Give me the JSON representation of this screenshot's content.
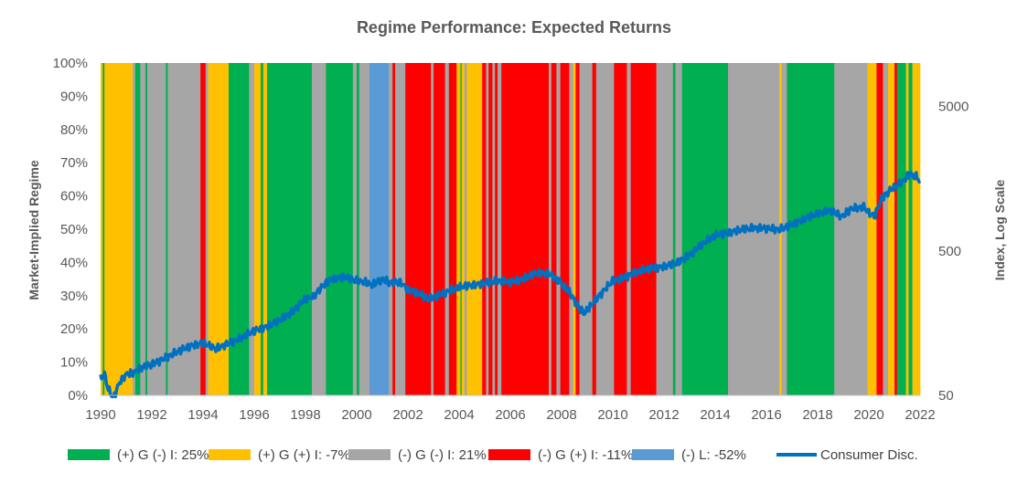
{
  "chart_data": {
    "type": "area",
    "title": "Regime Performance: Expected Returns",
    "ylabel": "Market-Implied Regime",
    "y2label": "Index, Log Scale",
    "xlim": [
      1990,
      2022
    ],
    "ylim": [
      0,
      100
    ],
    "y2lim": [
      50,
      10000
    ],
    "y2scale": "log",
    "x_ticks": [
      "1990",
      "1992",
      "1994",
      "1996",
      "1998",
      "2000",
      "2002",
      "2004",
      "2006",
      "2008",
      "2010",
      "2012",
      "2014",
      "2016",
      "2018",
      "2020",
      "2022"
    ],
    "y_ticks": [
      "0%",
      "10%",
      "20%",
      "30%",
      "40%",
      "50%",
      "60%",
      "70%",
      "80%",
      "90%",
      "100%"
    ],
    "y2_ticks": [
      {
        "label": "50",
        "value": 50
      },
      {
        "label": "500",
        "value": 500
      },
      {
        "label": "5000",
        "value": 5000
      }
    ],
    "grid": false,
    "legend_position": "bottom",
    "legend": [
      {
        "key": "gdi",
        "label": "(+) G (-) I: 25%",
        "color": "#00B050",
        "kind": "box"
      },
      {
        "key": "gii",
        "label": "(+) G (+) I: -7%",
        "color": "#FFC000",
        "kind": "box"
      },
      {
        "key": "ndi",
        "label": "(-) G (-) I: 21%",
        "color": "#A6A6A6",
        "kind": "box"
      },
      {
        "key": "nii",
        "label": "(-) G (+) I: -11%",
        "color": "#FF0000",
        "kind": "box"
      },
      {
        "key": "liq",
        "label": "(-) L: -52%",
        "color": "#5B9BD5",
        "kind": "box"
      },
      {
        "key": "line",
        "label": "Consumer Disc.",
        "color": "#0070C0",
        "kind": "line"
      }
    ],
    "regime_colors": {
      "G": "#00B050",
      "Y": "#FFC000",
      "A": "#A6A6A6",
      "R": "#FF0000",
      "B": "#5B9BD5"
    },
    "regime_periods": [
      {
        "start": 1990.0,
        "end": 1990.08,
        "regime": "Y"
      },
      {
        "start": 1990.08,
        "end": 1990.15,
        "regime": "G"
      },
      {
        "start": 1990.15,
        "end": 1990.45,
        "regime": "Y"
      },
      {
        "start": 1990.45,
        "end": 1991.25,
        "regime": "Y"
      },
      {
        "start": 1991.25,
        "end": 1991.35,
        "regime": "A"
      },
      {
        "start": 1991.35,
        "end": 1991.55,
        "regime": "G"
      },
      {
        "start": 1991.55,
        "end": 1991.75,
        "regime": "A"
      },
      {
        "start": 1991.75,
        "end": 1991.82,
        "regime": "G"
      },
      {
        "start": 1991.82,
        "end": 1992.55,
        "regime": "A"
      },
      {
        "start": 1992.55,
        "end": 1992.62,
        "regime": "G"
      },
      {
        "start": 1992.62,
        "end": 1993.9,
        "regime": "A"
      },
      {
        "start": 1993.9,
        "end": 1994.1,
        "regime": "R"
      },
      {
        "start": 1994.1,
        "end": 1994.2,
        "regime": "A"
      },
      {
        "start": 1994.2,
        "end": 1995.0,
        "regime": "Y"
      },
      {
        "start": 1995.0,
        "end": 1995.8,
        "regime": "G"
      },
      {
        "start": 1995.8,
        "end": 1996.0,
        "regime": "A"
      },
      {
        "start": 1996.0,
        "end": 1996.25,
        "regime": "Y"
      },
      {
        "start": 1996.25,
        "end": 1996.35,
        "regime": "G"
      },
      {
        "start": 1996.35,
        "end": 1996.5,
        "regime": "Y"
      },
      {
        "start": 1996.5,
        "end": 1998.25,
        "regime": "G"
      },
      {
        "start": 1998.25,
        "end": 1998.8,
        "regime": "A"
      },
      {
        "start": 1998.8,
        "end": 1999.85,
        "regime": "G"
      },
      {
        "start": 1999.85,
        "end": 2000.0,
        "regime": "A"
      },
      {
        "start": 2000.0,
        "end": 2000.1,
        "regime": "G"
      },
      {
        "start": 2000.1,
        "end": 2000.5,
        "regime": "A"
      },
      {
        "start": 2000.5,
        "end": 2001.25,
        "regime": "B"
      },
      {
        "start": 2001.25,
        "end": 2001.4,
        "regime": "A"
      },
      {
        "start": 2001.4,
        "end": 2001.5,
        "regime": "R"
      },
      {
        "start": 2001.5,
        "end": 2001.9,
        "regime": "A"
      },
      {
        "start": 2001.9,
        "end": 2002.9,
        "regime": "R"
      },
      {
        "start": 2002.9,
        "end": 2003.0,
        "regime": "A"
      },
      {
        "start": 2003.0,
        "end": 2003.45,
        "regime": "R"
      },
      {
        "start": 2003.45,
        "end": 2003.6,
        "regime": "A"
      },
      {
        "start": 2003.6,
        "end": 2003.9,
        "regime": "R"
      },
      {
        "start": 2003.9,
        "end": 2004.05,
        "regime": "Y"
      },
      {
        "start": 2004.05,
        "end": 2004.1,
        "regime": "G"
      },
      {
        "start": 2004.1,
        "end": 2004.2,
        "regime": "Y"
      },
      {
        "start": 2004.2,
        "end": 2004.3,
        "regime": "A"
      },
      {
        "start": 2004.3,
        "end": 2004.9,
        "regime": "Y"
      },
      {
        "start": 2004.9,
        "end": 2005.05,
        "regime": "R"
      },
      {
        "start": 2005.05,
        "end": 2005.15,
        "regime": "A"
      },
      {
        "start": 2005.15,
        "end": 2005.3,
        "regime": "R"
      },
      {
        "start": 2005.3,
        "end": 2005.4,
        "regime": "A"
      },
      {
        "start": 2005.4,
        "end": 2005.5,
        "regime": "R"
      },
      {
        "start": 2005.5,
        "end": 2005.65,
        "regime": "A"
      },
      {
        "start": 2005.65,
        "end": 2007.5,
        "regime": "R"
      },
      {
        "start": 2007.5,
        "end": 2007.6,
        "regime": "A"
      },
      {
        "start": 2007.6,
        "end": 2007.8,
        "regime": "R"
      },
      {
        "start": 2007.8,
        "end": 2007.95,
        "regime": "A"
      },
      {
        "start": 2007.95,
        "end": 2008.3,
        "regime": "R"
      },
      {
        "start": 2008.3,
        "end": 2008.45,
        "regime": "A"
      },
      {
        "start": 2008.45,
        "end": 2008.55,
        "regime": "Y"
      },
      {
        "start": 2008.55,
        "end": 2008.7,
        "regime": "R"
      },
      {
        "start": 2008.7,
        "end": 2009.2,
        "regime": "A"
      },
      {
        "start": 2009.2,
        "end": 2009.35,
        "regime": "R"
      },
      {
        "start": 2009.35,
        "end": 2010.05,
        "regime": "A"
      },
      {
        "start": 2010.05,
        "end": 2010.55,
        "regime": "R"
      },
      {
        "start": 2010.55,
        "end": 2010.7,
        "regime": "A"
      },
      {
        "start": 2010.7,
        "end": 2011.7,
        "regime": "R"
      },
      {
        "start": 2011.7,
        "end": 2012.35,
        "regime": "A"
      },
      {
        "start": 2012.35,
        "end": 2012.45,
        "regime": "G"
      },
      {
        "start": 2012.45,
        "end": 2012.7,
        "regime": "A"
      },
      {
        "start": 2012.7,
        "end": 2014.5,
        "regime": "G"
      },
      {
        "start": 2014.5,
        "end": 2016.5,
        "regime": "A"
      },
      {
        "start": 2016.5,
        "end": 2016.6,
        "regime": "Y"
      },
      {
        "start": 2016.6,
        "end": 2016.8,
        "regime": "A"
      },
      {
        "start": 2016.8,
        "end": 2018.65,
        "regime": "G"
      },
      {
        "start": 2018.65,
        "end": 2019.95,
        "regime": "A"
      },
      {
        "start": 2019.95,
        "end": 2020.3,
        "regime": "Y"
      },
      {
        "start": 2020.3,
        "end": 2020.55,
        "regime": "R"
      },
      {
        "start": 2020.55,
        "end": 2020.75,
        "regime": "A"
      },
      {
        "start": 2020.75,
        "end": 2021.0,
        "regime": "Y"
      },
      {
        "start": 2021.0,
        "end": 2021.1,
        "regime": "R"
      },
      {
        "start": 2021.1,
        "end": 2021.45,
        "regime": "G"
      },
      {
        "start": 2021.45,
        "end": 2021.55,
        "regime": "Y"
      },
      {
        "start": 2021.55,
        "end": 2021.7,
        "regime": "G"
      },
      {
        "start": 2021.7,
        "end": 2022.0,
        "regime": "Y"
      }
    ],
    "series": [
      {
        "name": "Consumer Disc.",
        "color": "#0070C0",
        "axis": "right",
        "x": [
          1990.0,
          1990.15,
          1990.3,
          1990.5,
          1990.75,
          1991.0,
          1991.3,
          1991.6,
          1992.0,
          1992.5,
          1993.0,
          1993.5,
          1994.0,
          1994.5,
          1995.0,
          1995.5,
          1996.0,
          1996.5,
          1997.0,
          1997.5,
          1998.0,
          1998.3,
          1998.7,
          1999.0,
          1999.5,
          2000.0,
          2000.3,
          2000.6,
          2001.0,
          2001.3,
          2001.7,
          2002.0,
          2002.5,
          2002.8,
          2003.0,
          2003.5,
          2004.0,
          2004.5,
          2005.0,
          2005.5,
          2006.0,
          2006.5,
          2007.0,
          2007.5,
          2007.9,
          2008.3,
          2008.7,
          2008.9,
          2009.2,
          2009.6,
          2010.0,
          2010.5,
          2011.0,
          2011.5,
          2012.0,
          2012.5,
          2013.0,
          2013.5,
          2014.0,
          2014.5,
          2015.0,
          2015.5,
          2016.0,
          2016.5,
          2017.0,
          2017.5,
          2018.0,
          2018.5,
          2018.95,
          2019.3,
          2019.8,
          2020.2,
          2020.5,
          2020.9,
          2021.3,
          2021.6,
          2021.85,
          2022.0
        ],
        "values": [
          65,
          70,
          55,
          48,
          62,
          70,
          72,
          78,
          82,
          90,
          100,
          110,
          115,
          105,
          115,
          125,
          140,
          150,
          165,
          190,
          235,
          240,
          290,
          320,
          330,
          310,
          305,
          290,
          320,
          300,
          305,
          270,
          250,
          230,
          240,
          260,
          280,
          290,
          300,
          310,
          305,
          320,
          350,
          350,
          310,
          260,
          200,
          185,
          215,
          260,
          310,
          330,
          360,
          380,
          390,
          410,
          470,
          560,
          640,
          670,
          700,
          720,
          720,
          700,
          760,
          840,
          900,
          960,
          860,
          980,
          1000,
          860,
          1150,
          1350,
          1500,
          1700,
          1650,
          1520
        ]
      }
    ]
  }
}
